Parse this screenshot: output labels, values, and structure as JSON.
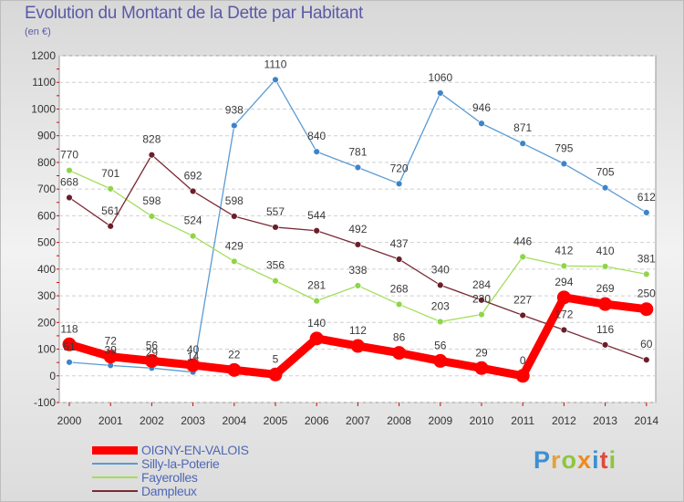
{
  "title": "Evolution du Montant de la Dette par Habitant",
  "subtitle": "(en €)",
  "logo": {
    "text": "Proxiti",
    "letter_colors": [
      "#3d8fd1",
      "#e2a23b",
      "#8dc63f",
      "#f08a1f",
      "#3d8fd1",
      "#e3483d",
      "#8dc63f"
    ]
  },
  "chart_data": {
    "type": "line",
    "title": "Evolution du Montant de la Dette par Habitant",
    "ylabel": "(en €)",
    "xlabel": "",
    "ylim": [
      -100,
      1200
    ],
    "ytick_step": 100,
    "grid": "horizontal dashed",
    "legend_position": "bottom-left",
    "x": [
      "2000",
      "2001",
      "2002",
      "2003",
      "2004",
      "2005",
      "2006",
      "2007",
      "2008",
      "2009",
      "2010",
      "2011",
      "2012",
      "2013",
      "2014"
    ],
    "series": [
      {
        "name": "OIGNY-EN-VALOIS",
        "color": "#ff0000",
        "emphasis": true,
        "values": [
          118,
          72,
          56,
          40,
          22,
          5,
          140,
          112,
          86,
          56,
          29,
          0,
          294,
          269,
          250
        ]
      },
      {
        "name": "Silly-la-Poterie",
        "color": "#5a9bd4",
        "point_color": "#3f83c9",
        "values": [
          51,
          39,
          29,
          14,
          938,
          1110,
          840,
          781,
          720,
          1060,
          946,
          871,
          795,
          705,
          612
        ]
      },
      {
        "name": "Fayerolles",
        "color": "#a2de5a",
        "point_color": "#90d44a",
        "values": [
          770,
          701,
          598,
          524,
          429,
          356,
          281,
          338,
          268,
          203,
          230,
          446,
          412,
          410,
          381
        ]
      },
      {
        "name": "Dampleux",
        "color": "#7a2a34",
        "point_color": "#6a1f2a",
        "values": [
          668,
          561,
          828,
          692,
          598,
          557,
          544,
          492,
          437,
          340,
          284,
          227,
          172,
          116,
          60
        ]
      }
    ]
  }
}
